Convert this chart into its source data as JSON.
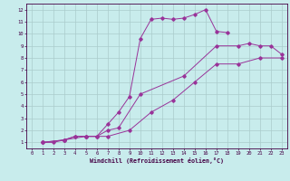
{
  "bg_color": "#c8ecec",
  "line_color": "#993399",
  "grid_color": "#aacccc",
  "xlabel": "Windchill (Refroidissement éolien,°C)",
  "xlim": [
    -0.5,
    23.5
  ],
  "ylim": [
    0.5,
    12.5
  ],
  "xticks": [
    0,
    1,
    2,
    3,
    4,
    5,
    6,
    7,
    8,
    9,
    10,
    11,
    12,
    13,
    14,
    15,
    16,
    17,
    18,
    19,
    20,
    21,
    22,
    23
  ],
  "yticks": [
    1,
    2,
    3,
    4,
    5,
    6,
    7,
    8,
    9,
    10,
    11,
    12
  ],
  "curve1_x": [
    1,
    2,
    3,
    4,
    5,
    6,
    7,
    8,
    9,
    10,
    11,
    12,
    13,
    14,
    15,
    16,
    17,
    18
  ],
  "curve1_y": [
    1.0,
    1.0,
    1.2,
    1.5,
    1.5,
    1.5,
    2.5,
    3.5,
    4.8,
    9.6,
    11.2,
    11.3,
    11.2,
    11.3,
    11.6,
    12.0,
    10.2,
    10.1
  ],
  "curve2_x": [
    1,
    3,
    4,
    5,
    6,
    7,
    8,
    10,
    14,
    17,
    19,
    20,
    21,
    22,
    23
  ],
  "curve2_y": [
    1.0,
    1.2,
    1.5,
    1.5,
    1.5,
    2.0,
    2.2,
    5.0,
    6.5,
    9.0,
    9.0,
    9.2,
    9.0,
    9.0,
    8.3
  ],
  "curve3_x": [
    1,
    3,
    5,
    7,
    9,
    11,
    13,
    15,
    17,
    19,
    21,
    23
  ],
  "curve3_y": [
    1.0,
    1.2,
    1.5,
    1.5,
    2.0,
    3.5,
    4.5,
    6.0,
    7.5,
    7.5,
    8.0,
    8.0
  ]
}
